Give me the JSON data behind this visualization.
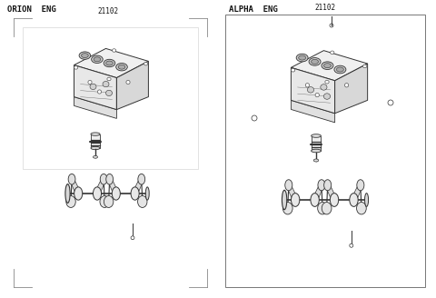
{
  "title_left": "ORION  ENG",
  "title_right": "ALPHA  ENG",
  "part_number_left": "21102",
  "part_number_right": "21102",
  "bg_color": "#ffffff",
  "text_color": "#111111",
  "line_color": "#333333",
  "light_line": "#888888",
  "figsize": [
    4.8,
    3.28
  ],
  "dpi": 100,
  "title_fontsize": 6.5,
  "partnum_fontsize": 5.5
}
